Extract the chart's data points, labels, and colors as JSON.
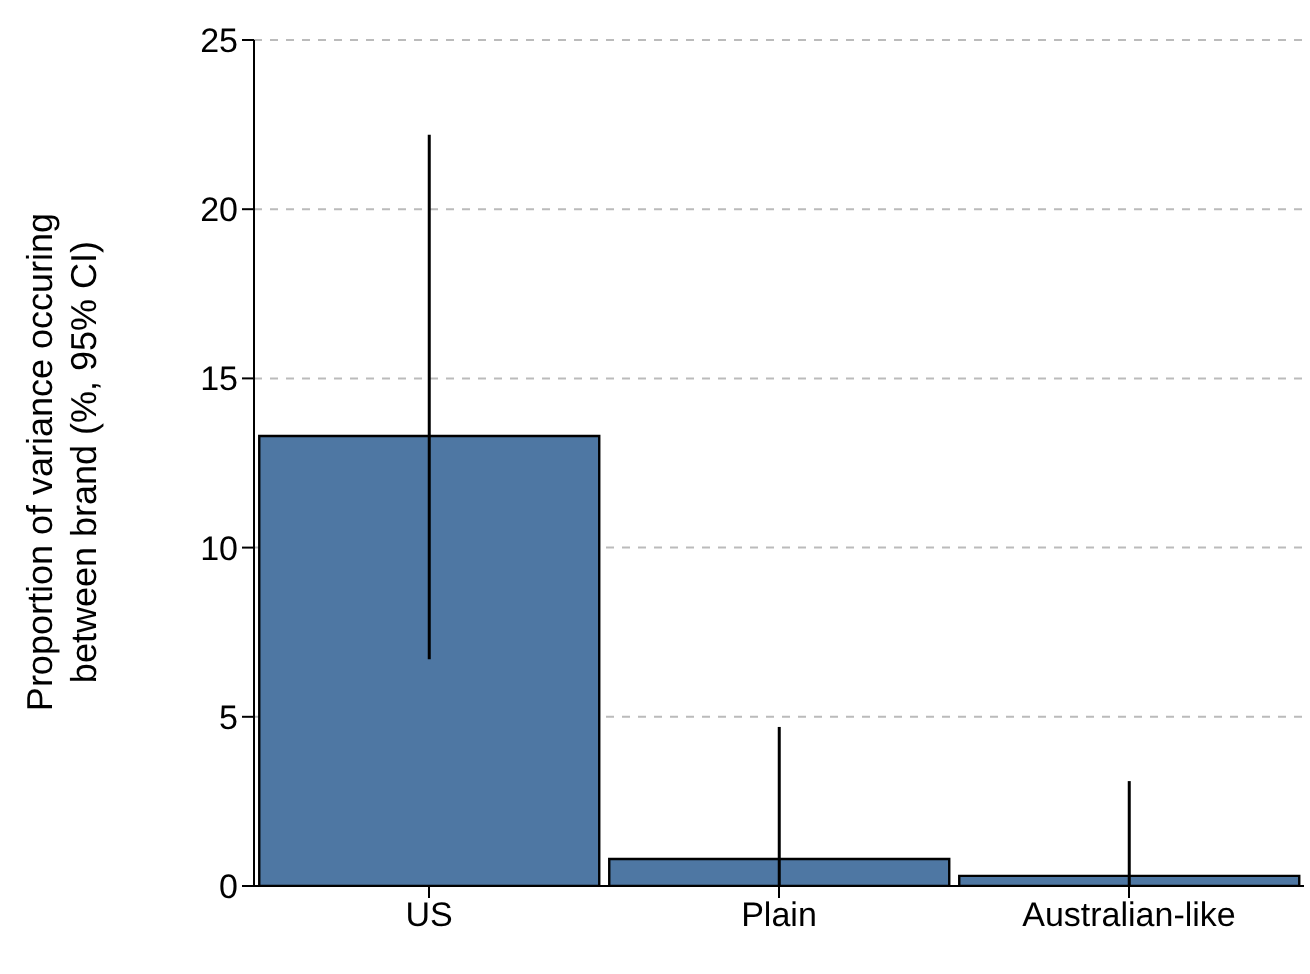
{
  "chart_data": {
    "type": "bar",
    "ylabel": "Proportion of variance occuring between brand (%, 95% CI)",
    "categories": [
      "US",
      "Plain",
      "Australian-like"
    ],
    "values": [
      13.3,
      0.8,
      0.3
    ],
    "errors": [
      [
        6.7,
        22.2
      ],
      [
        0,
        4.7
      ],
      [
        0,
        3.1
      ]
    ],
    "color": "#4e77a3",
    "ylim": [
      0,
      25
    ],
    "yticks": [
      0,
      5,
      10,
      15,
      20,
      25
    ],
    "grid": "y",
    "legend": false
  }
}
